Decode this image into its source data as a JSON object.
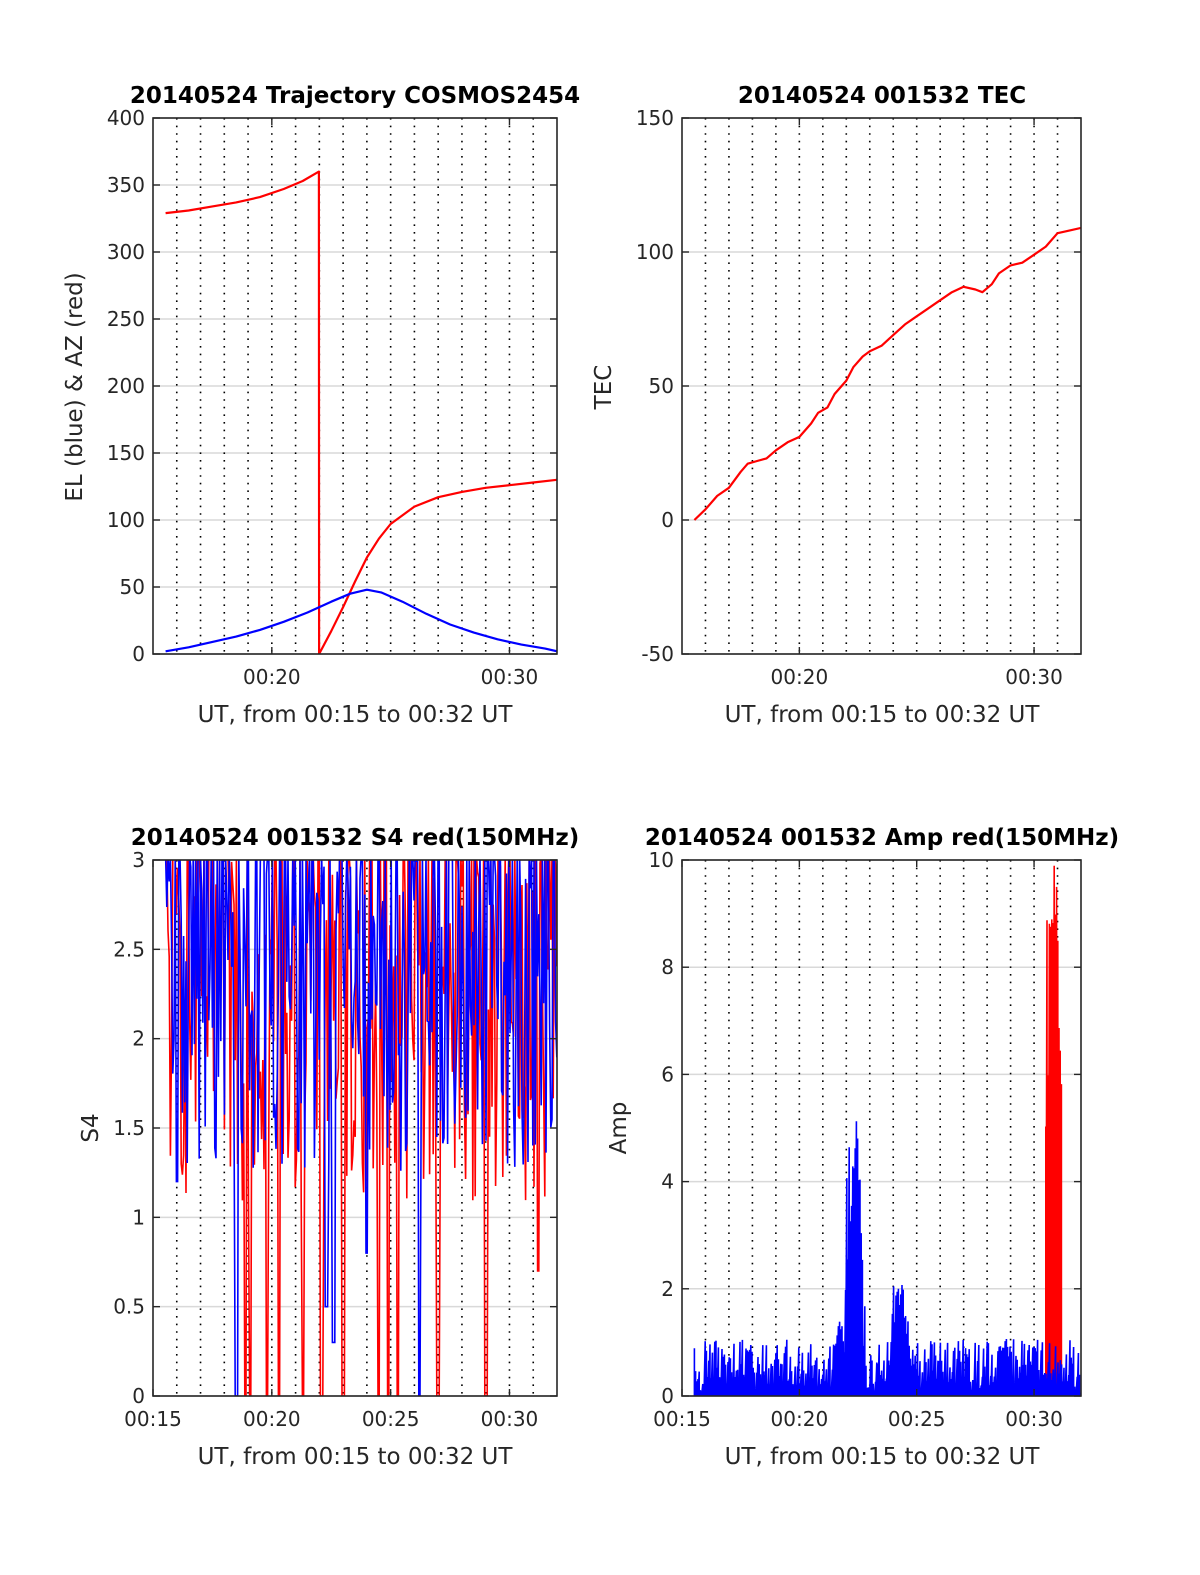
{
  "colors": {
    "el": "#0000ff",
    "az": "#ff0000",
    "grid": "#d9d9d9",
    "axis": "#262626"
  },
  "chart_data": [
    {
      "id": "traj",
      "type": "line",
      "title": "20140524 Trajectory COSMOS2454",
      "xlabel": "UT, from 00:15 to 00:32 UT",
      "ylabel": "EL (blue) & AZ (red)",
      "xlim": [
        15,
        32
      ],
      "ylim": [
        0,
        400
      ],
      "xticks": [
        {
          "v": 20,
          "label": "00:20"
        },
        {
          "v": 30,
          "label": "00:30"
        }
      ],
      "yticks": [
        {
          "v": 0,
          "label": "0"
        },
        {
          "v": 50,
          "label": "50"
        },
        {
          "v": 100,
          "label": "100"
        },
        {
          "v": 150,
          "label": "150"
        },
        {
          "v": 200,
          "label": "200"
        },
        {
          "v": 250,
          "label": "250"
        },
        {
          "v": 300,
          "label": "300"
        },
        {
          "v": 350,
          "label": "350"
        },
        {
          "v": 400,
          "label": "400"
        }
      ],
      "grid": true,
      "series": [
        {
          "color": "az",
          "x": [
            15.53,
            16.5,
            17.5,
            18.5,
            19.5,
            20.5,
            21.3,
            21.98,
            21.99,
            22.5,
            23.0,
            23.5,
            24.0,
            24.5,
            25.0,
            26.0,
            27.0,
            28.0,
            29.0,
            30.0,
            31.0,
            32.0
          ],
          "y": [
            329,
            331,
            334,
            337,
            341,
            347,
            353,
            360,
            0,
            17,
            35,
            54,
            72,
            86,
            97,
            110,
            117,
            121,
            124,
            126,
            128,
            130
          ]
        },
        {
          "color": "el",
          "x": [
            15.53,
            16.5,
            17.5,
            18.5,
            19.5,
            20.5,
            21.5,
            22.5,
            23.3,
            24.0,
            24.6,
            25.5,
            26.5,
            27.5,
            28.5,
            29.5,
            30.5,
            31.5,
            32.0
          ],
          "y": [
            2,
            5,
            9,
            13,
            18,
            24,
            31,
            39,
            45,
            48,
            46,
            39,
            30,
            22,
            16,
            11,
            7,
            4,
            2
          ]
        }
      ]
    },
    {
      "id": "tec",
      "type": "line",
      "title": "20140524 001532 TEC",
      "xlabel": "UT, from 00:15 to 00:32 UT",
      "ylabel": "TEC",
      "xlim": [
        15,
        32
      ],
      "ylim": [
        -50,
        150
      ],
      "xticks": [
        {
          "v": 20,
          "label": "00:20"
        },
        {
          "v": 30,
          "label": "00:30"
        }
      ],
      "yticks": [
        {
          "v": -50,
          "label": "-50"
        },
        {
          "v": 0,
          "label": "0"
        },
        {
          "v": 50,
          "label": "50"
        },
        {
          "v": 100,
          "label": "100"
        },
        {
          "v": 150,
          "label": "150"
        }
      ],
      "grid": true,
      "series": [
        {
          "color": "az",
          "x": [
            15.53,
            16.0,
            16.5,
            17.0,
            17.5,
            17.8,
            18.2,
            18.6,
            19.0,
            19.5,
            20.0,
            20.5,
            20.8,
            21.2,
            21.5,
            22.0,
            22.3,
            22.7,
            23.0,
            23.5,
            24.0,
            24.5,
            25.0,
            25.5,
            26.0,
            26.5,
            27.0,
            27.5,
            27.8,
            28.2,
            28.5,
            29.0,
            29.5,
            30.0,
            30.5,
            31.0,
            31.5,
            32.0
          ],
          "y": [
            0,
            4,
            9,
            12,
            18,
            21,
            22,
            23,
            26,
            29,
            31,
            36,
            40,
            42,
            47,
            52,
            57,
            61,
            63,
            65,
            69,
            73,
            76,
            79,
            82,
            85,
            87,
            86,
            85,
            88,
            92,
            95,
            96,
            99,
            102,
            107,
            108,
            109
          ]
        }
      ]
    },
    {
      "id": "s4",
      "type": "line",
      "title": "20140524 001532 S4 red(150MHz)",
      "xlabel": "UT, from 00:15 to 00:32 UT",
      "ylabel": "S4",
      "xlim": [
        15,
        32
      ],
      "ylim": [
        0,
        3
      ],
      "xticks": [
        {
          "v": 15,
          "label": "00:15"
        },
        {
          "v": 20,
          "label": "00:20"
        },
        {
          "v": 25,
          "label": "00:25"
        },
        {
          "v": 30,
          "label": "00:30"
        }
      ],
      "yticks": [
        {
          "v": 0,
          "label": "0"
        },
        {
          "v": 0.5,
          "label": "0.5"
        },
        {
          "v": 1,
          "label": "1"
        },
        {
          "v": 1.5,
          "label": "1.5"
        },
        {
          "v": 2,
          "label": "2"
        },
        {
          "v": 2.5,
          "label": "2.5"
        },
        {
          "v": 3,
          "label": "3"
        }
      ],
      "grid": true,
      "noise": [
        {
          "color": "az",
          "baseline": 2.0,
          "spread": 1.3,
          "x_start": 15.53,
          "x_end": 32.0,
          "dips": [
            {
              "x": 18.9,
              "y": 0
            },
            {
              "x": 19.1,
              "y": 0
            },
            {
              "x": 19.8,
              "y": 0
            },
            {
              "x": 20.3,
              "y": 0
            },
            {
              "x": 21.3,
              "y": 0
            },
            {
              "x": 22.1,
              "y": 0
            },
            {
              "x": 23.0,
              "y": 0
            },
            {
              "x": 24.5,
              "y": 0
            },
            {
              "x": 24.9,
              "y": 0
            },
            {
              "x": 25.3,
              "y": 0
            },
            {
              "x": 27.0,
              "y": 0
            },
            {
              "x": 29.0,
              "y": 0
            },
            {
              "x": 31.2,
              "y": 0.7
            }
          ]
        },
        {
          "color": "el",
          "baseline": 2.1,
          "spread": 1.2,
          "x_start": 15.53,
          "x_end": 32.0,
          "dips": [
            {
              "x": 16.0,
              "y": 1.2
            },
            {
              "x": 18.5,
              "y": 0
            },
            {
              "x": 22.3,
              "y": 0.5
            },
            {
              "x": 22.6,
              "y": 0.3
            },
            {
              "x": 24.0,
              "y": 0.8
            },
            {
              "x": 26.2,
              "y": 0
            }
          ]
        }
      ]
    },
    {
      "id": "amp",
      "type": "line",
      "title": "20140524 001532 Amp red(150MHz)",
      "xlabel": "UT, from 00:15 to 00:32 UT",
      "ylabel": "Amp",
      "xlim": [
        15,
        32
      ],
      "ylim": [
        0,
        10
      ],
      "xticks": [
        {
          "v": 15,
          "label": "00:15"
        },
        {
          "v": 20,
          "label": "00:20"
        },
        {
          "v": 25,
          "label": "00:25"
        },
        {
          "v": 30,
          "label": "00:30"
        }
      ],
      "yticks": [
        {
          "v": 0,
          "label": "0"
        },
        {
          "v": 2,
          "label": "2"
        },
        {
          "v": 4,
          "label": "4"
        },
        {
          "v": 6,
          "label": "6"
        },
        {
          "v": 8,
          "label": "8"
        },
        {
          "v": 10,
          "label": "10"
        }
      ],
      "grid": true,
      "noise": [
        {
          "color": "az",
          "baseline": 0.3,
          "spread": 0.2,
          "x_start": 30.5,
          "x_end": 31.2,
          "peaks": [
            {
              "x": 30.85,
              "y": 9.9
            },
            {
              "x": 30.75,
              "y": 9.0
            },
            {
              "x": 30.95,
              "y": 8.5
            }
          ]
        },
        {
          "color": "el",
          "baseline": 0.4,
          "spread": 0.5,
          "x_start": 15.53,
          "x_end": 32.0,
          "peaks": [
            {
              "x": 22.3,
              "y": 4.3
            },
            {
              "x": 22.45,
              "y": 5.2
            },
            {
              "x": 21.7,
              "y": 1.4
            },
            {
              "x": 24.2,
              "y": 2.1
            },
            {
              "x": 24.5,
              "y": 1.5
            },
            {
              "x": 28.8,
              "y": 1.1
            }
          ]
        }
      ]
    }
  ]
}
